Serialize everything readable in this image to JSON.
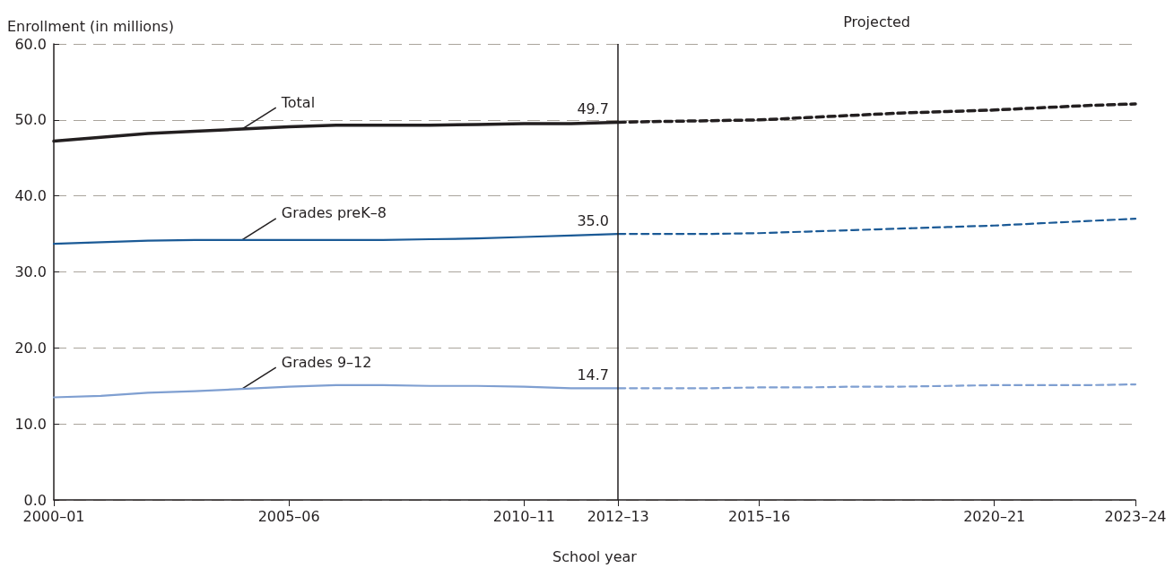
{
  "chart_data": {
    "type": "line",
    "ylabel": "Enrollment (in millions)",
    "xlabel": "School year",
    "categories": [
      "2000–01",
      null,
      null,
      null,
      null,
      "2005–06",
      null,
      null,
      null,
      null,
      "2010–11",
      null,
      "2012–13",
      null,
      null,
      "2015–16",
      null,
      null,
      null,
      null,
      "2020–21",
      null,
      null,
      "2023–24"
    ],
    "ylim": [
      0,
      60
    ],
    "yticks": [
      {
        "value": 0,
        "label": "0.0"
      },
      {
        "value": 10,
        "label": "10.0"
      },
      {
        "value": 20,
        "label": "20.0"
      },
      {
        "value": 30,
        "label": "30.0"
      },
      {
        "value": 40,
        "label": "40.0"
      },
      {
        "value": 50,
        "label": "50.0"
      },
      {
        "value": 60,
        "label": "60.0"
      }
    ],
    "grid": "y",
    "marker": "none",
    "series": [
      {
        "color": "#231f20",
        "line_style": "solid",
        "values": [
          47.2,
          47.7,
          48.2,
          48.5,
          48.8,
          49.1,
          49.3,
          49.3,
          49.3,
          49.4,
          49.5,
          49.5,
          49.7,
          null,
          null,
          null,
          null,
          null,
          null,
          null,
          null,
          null,
          null,
          null
        ],
        "value_labels": [
          null,
          null,
          null,
          null,
          null,
          null,
          null,
          null,
          null,
          null,
          null,
          null,
          "49.7",
          null,
          null,
          null,
          null,
          null,
          null,
          null,
          null,
          null,
          null,
          null
        ]
      },
      {
        "color": "#231f20",
        "line_style": "dashed",
        "values": [
          null,
          null,
          null,
          null,
          null,
          null,
          null,
          null,
          null,
          null,
          null,
          null,
          49.7,
          49.8,
          49.9,
          50.0,
          50.3,
          50.6,
          50.9,
          51.1,
          51.3,
          51.6,
          51.9,
          52.1
        ]
      },
      {
        "color": "#1b5a96",
        "line_style": "solid",
        "values": [
          33.7,
          33.9,
          34.1,
          34.2,
          34.2,
          34.2,
          34.2,
          34.2,
          34.3,
          34.4,
          34.6,
          34.8,
          35.0,
          null,
          null,
          null,
          null,
          null,
          null,
          null,
          null,
          null,
          null,
          null
        ],
        "value_labels": [
          null,
          null,
          null,
          null,
          null,
          null,
          null,
          null,
          null,
          null,
          null,
          null,
          "35.0",
          null,
          null,
          null,
          null,
          null,
          null,
          null,
          null,
          null,
          null,
          null
        ]
      },
      {
        "color": "#1b5a96",
        "line_style": "dashed",
        "values": [
          null,
          null,
          null,
          null,
          null,
          null,
          null,
          null,
          null,
          null,
          null,
          null,
          35.0,
          35.0,
          35.0,
          35.1,
          35.3,
          35.5,
          35.7,
          35.9,
          36.1,
          36.4,
          36.7,
          37.0
        ]
      },
      {
        "color": "#7f9fd1",
        "line_style": "solid",
        "values": [
          13.5,
          13.7,
          14.1,
          14.3,
          14.6,
          14.9,
          15.1,
          15.1,
          15.0,
          15.0,
          14.9,
          14.7,
          14.7,
          null,
          null,
          null,
          null,
          null,
          null,
          null,
          null,
          null,
          null,
          null
        ],
        "value_labels": [
          null,
          null,
          null,
          null,
          null,
          null,
          null,
          null,
          null,
          null,
          null,
          null,
          "14.7",
          null,
          null,
          null,
          null,
          null,
          null,
          null,
          null,
          null,
          null,
          null
        ]
      },
      {
        "color": "#7f9fd1",
        "line_style": "dashed",
        "values": [
          null,
          null,
          null,
          null,
          null,
          null,
          null,
          null,
          null,
          null,
          null,
          null,
          14.7,
          14.7,
          14.7,
          14.8,
          14.8,
          14.9,
          14.9,
          15.0,
          15.1,
          15.1,
          15.1,
          15.2
        ]
      }
    ],
    "ref_lines": [
      {
        "axis": "x",
        "value": "2012–13",
        "color": "#231f20",
        "line_style": "solid"
      }
    ],
    "annotations": [
      {
        "text": "Total",
        "y": 48.8
      },
      {
        "text": "Grades preK–8",
        "y": 34.2
      },
      {
        "text": "Grades 9–12",
        "y": 14.6
      },
      "Projected"
    ]
  }
}
